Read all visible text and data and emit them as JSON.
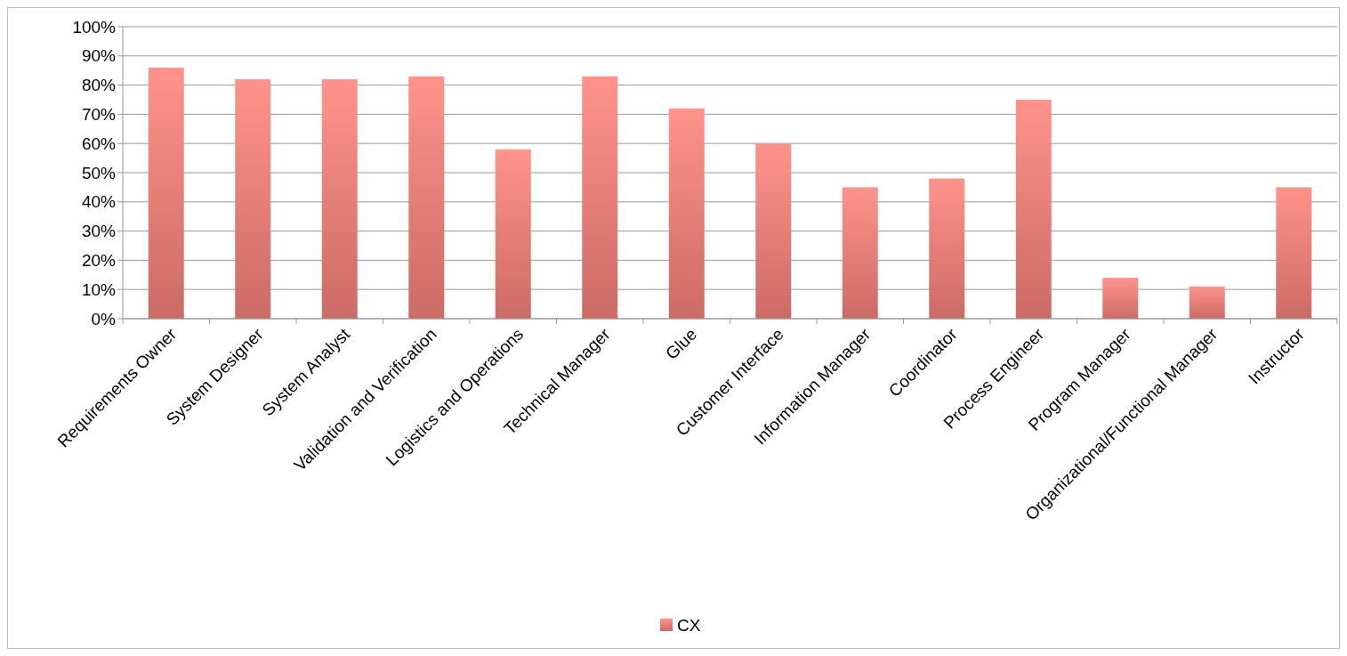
{
  "chart_data": {
    "type": "bar",
    "categories": [
      "Requirements Owner",
      "System Designer",
      "System Analyst",
      "Validation and Verification",
      "Logistics and Operations",
      "Technical Manager",
      "Glue",
      "Customer Interface",
      "Information Manager",
      "Coordinator",
      "Process Engineer",
      "Program Manager",
      "Organizational/Functional Manager",
      "Instructor"
    ],
    "series": [
      {
        "name": "CX",
        "color": "#ea7b74",
        "values": [
          86,
          82,
          82,
          83,
          58,
          83,
          72,
          60,
          45,
          48,
          75,
          14,
          11,
          45
        ]
      }
    ],
    "ylim": [
      0,
      100
    ],
    "yticks": [
      {
        "value": 0,
        "label": "0%"
      },
      {
        "value": 10,
        "label": "10%"
      },
      {
        "value": 20,
        "label": "20%"
      },
      {
        "value": 30,
        "label": "30%"
      },
      {
        "value": 40,
        "label": "40%"
      },
      {
        "value": 50,
        "label": "50%"
      },
      {
        "value": 60,
        "label": "60%"
      },
      {
        "value": 70,
        "label": "70%"
      },
      {
        "value": 80,
        "label": "80%"
      },
      {
        "value": 90,
        "label": "90%"
      },
      {
        "value": 100,
        "label": "100%"
      }
    ],
    "grid": "y",
    "legend": "bottom"
  }
}
